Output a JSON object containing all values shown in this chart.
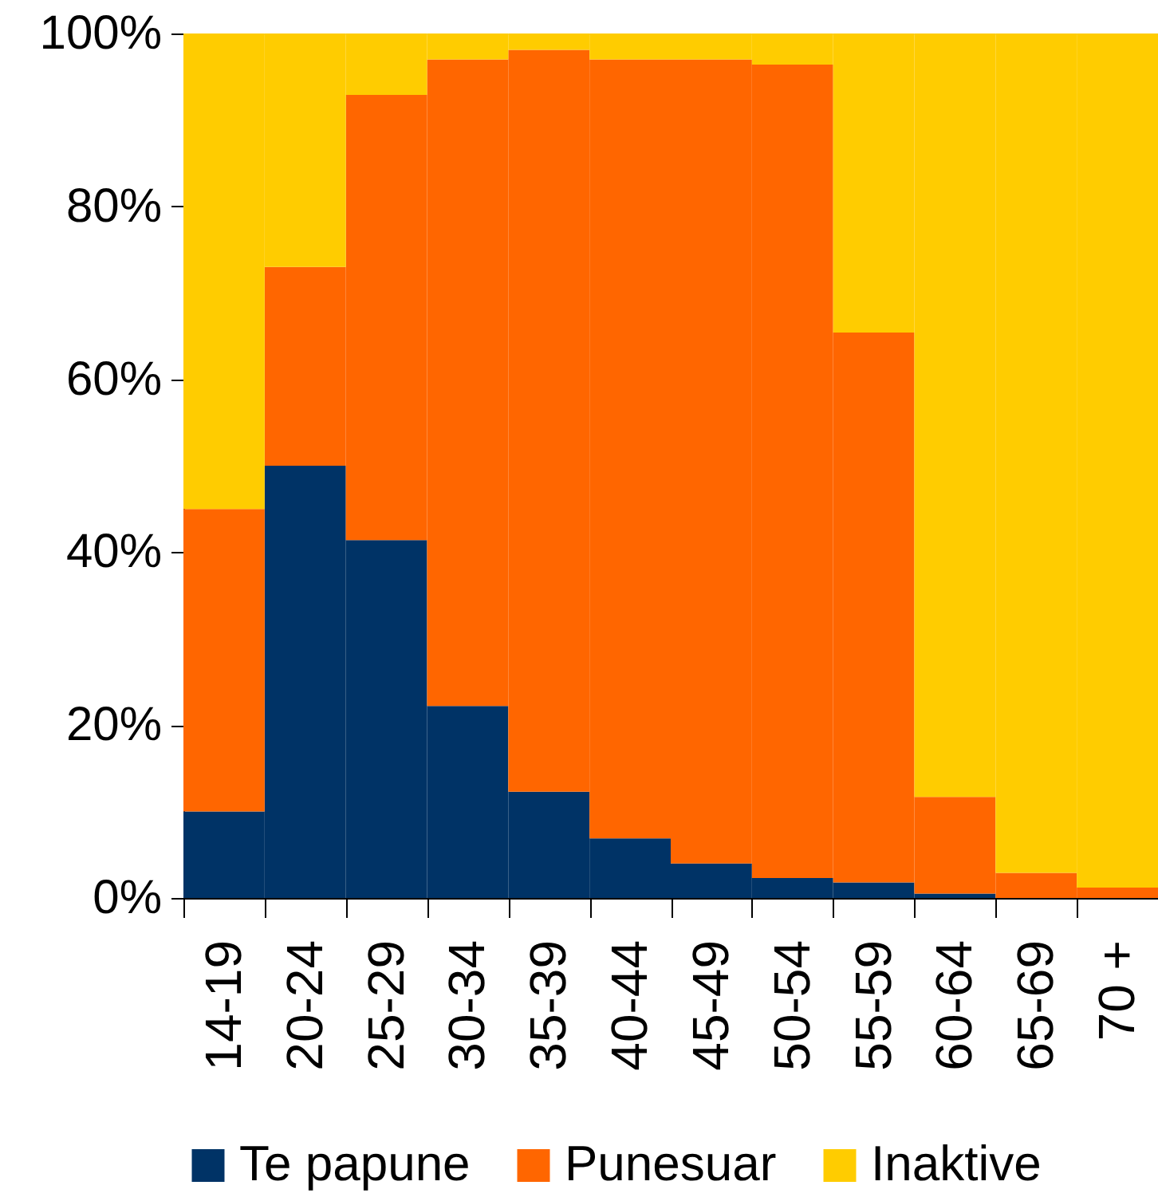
{
  "chart_data": {
    "type": "bar",
    "stacked": true,
    "categories": [
      "14-19",
      "20-24",
      "25-29",
      "30-34",
      "35-39",
      "40-44",
      "45-49",
      "50-54",
      "55-59",
      "60-64",
      "65-69",
      "70 +"
    ],
    "series": [
      {
        "name": "Te papune",
        "color": "#003366",
        "values": [
          10,
          50,
          41.4,
          22.2,
          12.3,
          6.9,
          4.0,
          2.3,
          1.8,
          0.5,
          0,
          0
        ]
      },
      {
        "name": "Punesuar",
        "color": "#ff6600",
        "values": [
          35,
          23,
          51.5,
          74.8,
          85.8,
          90.1,
          93.0,
          94.1,
          63.6,
          11.2,
          2.9,
          1.2
        ]
      },
      {
        "name": "Inaktive",
        "color": "#ffcc00",
        "values": [
          55,
          27,
          7.1,
          3.0,
          1.9,
          3.0,
          3.0,
          3.6,
          34.6,
          88.3,
          97.1,
          98.8
        ]
      }
    ],
    "ylim": [
      0,
      100
    ],
    "yticks": [
      {
        "value": 0,
        "label": "0%"
      },
      {
        "value": 20,
        "label": "20%"
      },
      {
        "value": 40,
        "label": "40%"
      },
      {
        "value": 60,
        "label": "60%"
      },
      {
        "value": 80,
        "label": "80%"
      },
      {
        "value": 100,
        "label": "100%"
      }
    ],
    "legend": "bottom"
  }
}
